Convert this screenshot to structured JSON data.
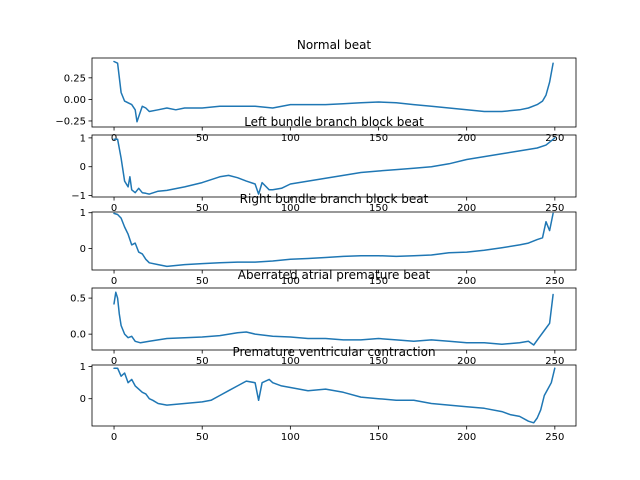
{
  "chart_data": [
    {
      "type": "line",
      "title": "Normal beat",
      "xlabel": "",
      "ylabel": "",
      "xlim": [
        -12.5,
        262
      ],
      "ylim": [
        -0.32,
        0.48
      ],
      "xticks": [
        0,
        50,
        100,
        150,
        200,
        250
      ],
      "xtick_labels": [
        "0",
        "50",
        "100",
        "150",
        "200",
        "250"
      ],
      "yticks": [
        0.25,
        0.0,
        -0.25
      ],
      "ytick_labels": [
        "0.25",
        "0.00",
        "−0.25"
      ],
      "series": [
        {
          "x": [
            0,
            2,
            4,
            6,
            8,
            10,
            12,
            13,
            14,
            16,
            18,
            20,
            25,
            30,
            35,
            40,
            50,
            60,
            70,
            80,
            90,
            100,
            110,
            120,
            130,
            140,
            150,
            160,
            170,
            180,
            190,
            200,
            210,
            220,
            230,
            235,
            240,
            243,
            245,
            247,
            249
          ],
          "y": [
            0.44,
            0.42,
            0.08,
            -0.02,
            -0.04,
            -0.06,
            -0.12,
            -0.26,
            -0.2,
            -0.08,
            -0.1,
            -0.14,
            -0.12,
            -0.1,
            -0.12,
            -0.1,
            -0.1,
            -0.08,
            -0.08,
            -0.08,
            -0.1,
            -0.06,
            -0.06,
            -0.06,
            -0.05,
            -0.04,
            -0.03,
            -0.04,
            -0.06,
            -0.08,
            -0.1,
            -0.12,
            -0.14,
            -0.14,
            -0.12,
            -0.1,
            -0.06,
            -0.02,
            0.05,
            0.2,
            0.42
          ]
        }
      ]
    },
    {
      "type": "line",
      "title": "Left bundle branch block beat",
      "xlabel": "",
      "ylabel": "",
      "xlim": [
        -12.5,
        262
      ],
      "ylim": [
        -1.05,
        1.1
      ],
      "xticks": [
        0,
        50,
        100,
        150,
        200,
        250
      ],
      "xtick_labels": [
        "0",
        "50",
        "100",
        "150",
        "200",
        "250"
      ],
      "yticks": [
        1,
        0,
        -1
      ],
      "ytick_labels": [
        "1",
        "0",
        "−1"
      ],
      "series": [
        {
          "x": [
            0,
            2,
            4,
            6,
            8,
            9,
            10,
            12,
            14,
            16,
            18,
            20,
            25,
            30,
            40,
            50,
            55,
            60,
            65,
            70,
            75,
            80,
            82,
            84,
            88,
            90,
            95,
            100,
            110,
            120,
            130,
            140,
            150,
            160,
            170,
            180,
            190,
            200,
            210,
            220,
            230,
            240,
            245,
            248,
            250
          ],
          "y": [
            0.95,
            0.95,
            0.3,
            -0.5,
            -0.7,
            -0.35,
            -0.8,
            -0.9,
            -0.75,
            -0.9,
            -0.92,
            -0.95,
            -0.85,
            -0.82,
            -0.7,
            -0.55,
            -0.45,
            -0.35,
            -0.3,
            -0.38,
            -0.5,
            -0.6,
            -0.95,
            -0.55,
            -0.8,
            -0.8,
            -0.75,
            -0.6,
            -0.5,
            -0.4,
            -0.3,
            -0.2,
            -0.15,
            -0.1,
            -0.05,
            0.0,
            0.1,
            0.25,
            0.35,
            0.45,
            0.55,
            0.65,
            0.75,
            0.9,
            1.0
          ]
        }
      ]
    },
    {
      "type": "line",
      "title": "Right bundle branch block beat",
      "xlabel": "",
      "ylabel": "",
      "xlim": [
        -12.5,
        262
      ],
      "ylim": [
        -0.6,
        1.02
      ],
      "xticks": [
        0,
        50,
        100,
        150,
        200,
        250
      ],
      "xtick_labels": [
        "0",
        "50",
        "100",
        "150",
        "200",
        "250"
      ],
      "yticks": [
        1,
        0
      ],
      "ytick_labels": [
        "1",
        "0"
      ],
      "series": [
        {
          "x": [
            0,
            2,
            4,
            6,
            8,
            10,
            12,
            14,
            16,
            18,
            20,
            25,
            30,
            40,
            50,
            60,
            70,
            80,
            90,
            100,
            110,
            120,
            130,
            140,
            150,
            160,
            170,
            180,
            190,
            200,
            210,
            220,
            230,
            235,
            240,
            243,
            245,
            247,
            249
          ],
          "y": [
            0.98,
            0.95,
            0.85,
            0.6,
            0.4,
            0.1,
            0.15,
            -0.1,
            -0.15,
            -0.3,
            -0.4,
            -0.45,
            -0.5,
            -0.45,
            -0.42,
            -0.4,
            -0.38,
            -0.38,
            -0.35,
            -0.3,
            -0.28,
            -0.25,
            -0.22,
            -0.2,
            -0.2,
            -0.22,
            -0.2,
            -0.18,
            -0.12,
            -0.1,
            -0.05,
            0.02,
            0.1,
            0.15,
            0.25,
            0.3,
            0.75,
            0.5,
            0.98
          ]
        }
      ]
    },
    {
      "type": "line",
      "title": "Aberrated atrial premature beat",
      "xlabel": "",
      "ylabel": "",
      "xlim": [
        -12.5,
        262
      ],
      "ylim": [
        -0.22,
        0.64
      ],
      "xticks": [
        0,
        50,
        100,
        150,
        200,
        250
      ],
      "xtick_labels": [
        "0",
        "50",
        "100",
        "150",
        "200",
        "250"
      ],
      "yticks": [
        0.5,
        0.0
      ],
      "ytick_labels": [
        "0.5",
        "0.0"
      ],
      "series": [
        {
          "x": [
            0,
            1,
            2,
            3,
            4,
            6,
            8,
            10,
            12,
            15,
            20,
            25,
            30,
            40,
            50,
            60,
            70,
            75,
            80,
            90,
            100,
            110,
            120,
            130,
            140,
            150,
            160,
            170,
            180,
            190,
            200,
            210,
            220,
            230,
            235,
            238,
            241,
            244,
            247,
            249
          ],
          "y": [
            0.42,
            0.58,
            0.5,
            0.28,
            0.12,
            0.0,
            -0.05,
            -0.03,
            -0.1,
            -0.12,
            -0.1,
            -0.08,
            -0.06,
            -0.05,
            -0.04,
            -0.02,
            0.02,
            0.03,
            0.0,
            -0.03,
            -0.04,
            -0.06,
            -0.06,
            -0.08,
            -0.08,
            -0.06,
            -0.08,
            -0.1,
            -0.08,
            -0.1,
            -0.12,
            -0.12,
            -0.14,
            -0.12,
            -0.1,
            -0.15,
            -0.05,
            0.05,
            0.15,
            0.55
          ]
        }
      ]
    },
    {
      "type": "line",
      "title": "Premature ventricular contraction",
      "xlabel": "",
      "ylabel": "",
      "xlim": [
        -12.5,
        262
      ],
      "ylim": [
        -0.85,
        1.05
      ],
      "xticks": [
        0,
        50,
        100,
        150,
        200,
        250
      ],
      "xtick_labels": [
        "0",
        "50",
        "100",
        "150",
        "200",
        "250"
      ],
      "yticks": [
        1,
        0
      ],
      "ytick_labels": [
        "1",
        "0"
      ],
      "series": [
        {
          "x": [
            0,
            2,
            4,
            6,
            8,
            10,
            12,
            14,
            16,
            18,
            20,
            22,
            25,
            30,
            40,
            50,
            55,
            60,
            65,
            70,
            75,
            80,
            82,
            84,
            88,
            90,
            95,
            100,
            110,
            120,
            130,
            140,
            150,
            160,
            170,
            180,
            190,
            200,
            210,
            220,
            225,
            230,
            235,
            238,
            240,
            242,
            244,
            246,
            248,
            250
          ],
          "y": [
            0.95,
            0.95,
            0.7,
            0.8,
            0.5,
            0.6,
            0.4,
            0.3,
            0.2,
            0.15,
            0.0,
            -0.05,
            -0.15,
            -0.2,
            -0.15,
            -0.1,
            -0.05,
            0.1,
            0.25,
            0.4,
            0.55,
            0.5,
            -0.05,
            0.5,
            0.6,
            0.5,
            0.4,
            0.35,
            0.25,
            0.3,
            0.2,
            0.05,
            0.0,
            -0.05,
            -0.05,
            -0.15,
            -0.2,
            -0.25,
            -0.3,
            -0.4,
            -0.5,
            -0.55,
            -0.7,
            -0.75,
            -0.6,
            -0.35,
            0.1,
            0.3,
            0.5,
            0.95
          ]
        }
      ]
    }
  ],
  "colors": {
    "series": "#1f77b4",
    "axis": "#000000",
    "background": "#ffffff"
  }
}
